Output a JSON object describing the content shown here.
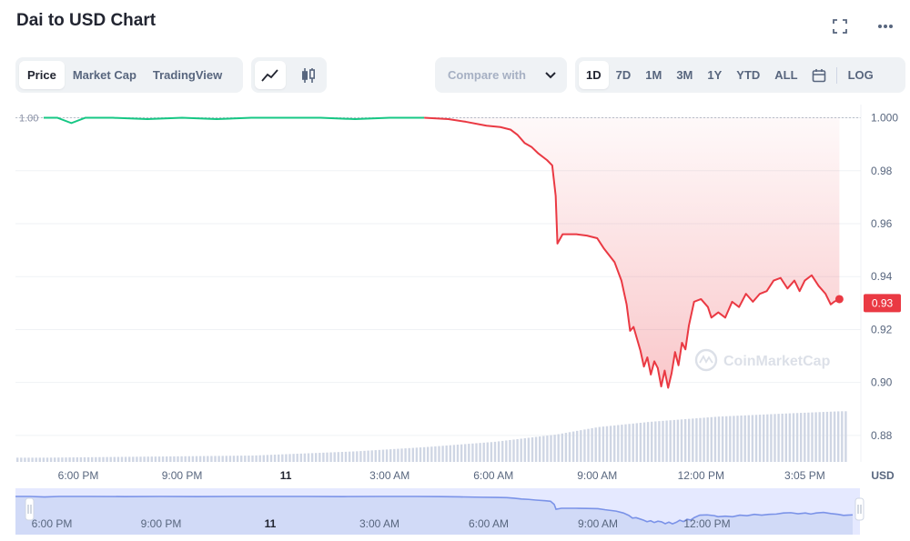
{
  "header": {
    "title": "Dai to USD Chart",
    "fullscreen_icon": "fullscreen-icon",
    "more_icon": "more-dots-icon"
  },
  "tabs": [
    {
      "label": "Price",
      "active": true
    },
    {
      "label": "Market Cap",
      "active": false
    },
    {
      "label": "TradingView",
      "active": false
    }
  ],
  "chart_type_buttons": [
    {
      "icon": "line-chart-icon",
      "active": true
    },
    {
      "icon": "candlestick-icon",
      "active": false
    }
  ],
  "compare": {
    "placeholder": "Compare with",
    "icon": "chevron-down-icon"
  },
  "ranges": [
    {
      "label": "1D",
      "active": true
    },
    {
      "label": "7D",
      "active": false
    },
    {
      "label": "1M",
      "active": false
    },
    {
      "label": "3M",
      "active": false
    },
    {
      "label": "1Y",
      "active": false
    },
    {
      "label": "YTD",
      "active": false
    },
    {
      "label": "ALL",
      "active": false
    }
  ],
  "calendar_icon": "calendar-icon",
  "log_label": "LOG",
  "watermark": "CoinMarketCap",
  "chart_data": {
    "type": "line",
    "ylim": [
      0.87,
      1.005
    ],
    "y_ticks": [
      "1.000",
      "0.98",
      "0.96",
      "0.94",
      "0.92",
      "0.90",
      "0.88"
    ],
    "y_tick_values": [
      1.0,
      0.98,
      0.96,
      0.94,
      0.92,
      0.9,
      0.88
    ],
    "y_unit": "USD",
    "open_price_label": "1.00",
    "open_price": 1.0,
    "current_price_label": "0.93",
    "current_price": 0.93,
    "x_ticks": [
      "6:00 PM",
      "9:00 PM",
      "11",
      "3:00 AM",
      "6:00 AM",
      "9:00 AM",
      "12:00 PM",
      "3:05 PM"
    ],
    "x_tick_hours": [
      1,
      4,
      7,
      10,
      13,
      16,
      19,
      22
    ],
    "x_range_hours": [
      0,
      23.2
    ],
    "price": [
      [
        0,
        1.0
      ],
      [
        0.4,
        1.0
      ],
      [
        0.8,
        0.998
      ],
      [
        1.2,
        1.0
      ],
      [
        2,
        1.0
      ],
      [
        3,
        0.9995
      ],
      [
        4,
        1.0
      ],
      [
        5,
        0.9995
      ],
      [
        6,
        1.0
      ],
      [
        7,
        1.0
      ],
      [
        8,
        1.0
      ],
      [
        9,
        0.9995
      ],
      [
        10,
        1.0
      ],
      [
        11,
        1.0
      ],
      [
        11.7,
        0.9995
      ],
      [
        12.2,
        0.9985
      ],
      [
        12.8,
        0.997
      ],
      [
        13.2,
        0.9965
      ],
      [
        13.5,
        0.9955
      ],
      [
        13.7,
        0.9935
      ],
      [
        13.9,
        0.9905
      ],
      [
        14.1,
        0.989
      ],
      [
        14.3,
        0.9865
      ],
      [
        14.55,
        0.984
      ],
      [
        14.7,
        0.982
      ],
      [
        14.8,
        0.9705
      ],
      [
        14.85,
        0.9525
      ],
      [
        15,
        0.956
      ],
      [
        15.4,
        0.956
      ],
      [
        15.7,
        0.9555
      ],
      [
        16,
        0.9545
      ],
      [
        16.2,
        0.9505
      ],
      [
        16.5,
        0.9455
      ],
      [
        16.7,
        0.9385
      ],
      [
        16.85,
        0.9295
      ],
      [
        16.95,
        0.9195
      ],
      [
        17.05,
        0.921
      ],
      [
        17.15,
        0.9165
      ],
      [
        17.25,
        0.912
      ],
      [
        17.35,
        0.906
      ],
      [
        17.45,
        0.9095
      ],
      [
        17.55,
        0.903
      ],
      [
        17.65,
        0.908
      ],
      [
        17.75,
        0.9055
      ],
      [
        17.85,
        0.8985
      ],
      [
        17.95,
        0.9045
      ],
      [
        18.05,
        0.898
      ],
      [
        18.15,
        0.9035
      ],
      [
        18.25,
        0.9115
      ],
      [
        18.35,
        0.9065
      ],
      [
        18.45,
        0.915
      ],
      [
        18.55,
        0.9125
      ],
      [
        18.65,
        0.9215
      ],
      [
        18.8,
        0.9305
      ],
      [
        19,
        0.9315
      ],
      [
        19.2,
        0.9285
      ],
      [
        19.3,
        0.9245
      ],
      [
        19.5,
        0.9265
      ],
      [
        19.7,
        0.9245
      ],
      [
        19.9,
        0.9305
      ],
      [
        20.1,
        0.9285
      ],
      [
        20.3,
        0.9335
      ],
      [
        20.5,
        0.9305
      ],
      [
        20.7,
        0.9335
      ],
      [
        20.9,
        0.9345
      ],
      [
        21.1,
        0.9385
      ],
      [
        21.3,
        0.9395
      ],
      [
        21.5,
        0.9355
      ],
      [
        21.7,
        0.9385
      ],
      [
        21.85,
        0.9345
      ],
      [
        22,
        0.9385
      ],
      [
        22.2,
        0.9405
      ],
      [
        22.4,
        0.9365
      ],
      [
        22.6,
        0.9335
      ],
      [
        22.75,
        0.9295
      ],
      [
        22.85,
        0.9305
      ],
      [
        23,
        0.9315
      ]
    ],
    "volume_relative": [
      [
        0,
        0.08
      ],
      [
        6,
        0.12
      ],
      [
        9,
        0.2
      ],
      [
        11,
        0.28
      ],
      [
        13,
        0.38
      ],
      [
        14.8,
        0.52
      ],
      [
        16,
        0.66
      ],
      [
        17.5,
        0.76
      ],
      [
        19.5,
        0.86
      ],
      [
        21.5,
        0.92
      ],
      [
        23,
        0.96
      ]
    ],
    "navigator_labels": [
      "6:00 PM",
      "9:00 PM",
      "11",
      "3:00 AM",
      "6:00 AM",
      "9:00 AM",
      "12:00 PM"
    ]
  }
}
